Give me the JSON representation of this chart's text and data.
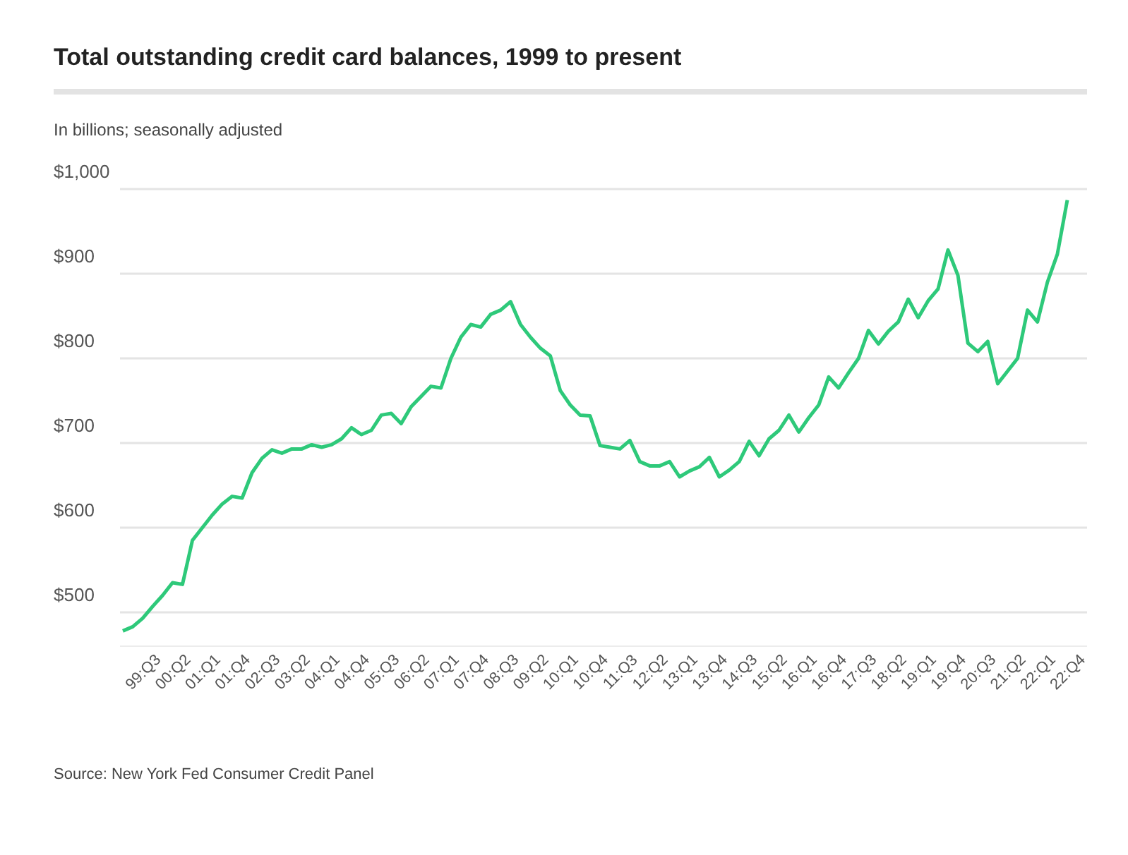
{
  "chart_data": {
    "type": "line",
    "title": "Total outstanding credit card balances, 1999 to present",
    "subtitle": "In billions; seasonally adjusted",
    "annotations": [
      "Source: New York Fed Consumer Credit Panel"
    ],
    "categories": [
      null,
      null,
      "99:Q3",
      null,
      null,
      "00:Q2",
      null,
      null,
      "01:Q1",
      null,
      null,
      "01:Q4",
      null,
      null,
      "02:Q3",
      null,
      null,
      "03:Q2",
      null,
      null,
      "04:Q1",
      null,
      null,
      "04:Q4",
      null,
      null,
      "05:Q3",
      null,
      null,
      "06:Q2",
      null,
      null,
      "07:Q1",
      null,
      null,
      "07:Q4",
      null,
      null,
      "08:Q3",
      null,
      null,
      "09:Q2",
      null,
      null,
      "10:Q1",
      null,
      null,
      "10:Q4",
      null,
      null,
      "11:Q3",
      null,
      null,
      "12:Q2",
      null,
      null,
      "13:Q1",
      null,
      null,
      "13:Q4",
      null,
      null,
      "14:Q3",
      null,
      null,
      "15:Q2",
      null,
      null,
      "16:Q1",
      null,
      null,
      "16:Q4",
      null,
      null,
      "17:Q3",
      null,
      null,
      "18:Q2",
      null,
      null,
      "19:Q1",
      null,
      null,
      "19:Q4",
      null,
      null,
      "20:Q3",
      null,
      null,
      "21:Q2",
      null,
      null,
      "22:Q1",
      null,
      null,
      "22:Q4"
    ],
    "series": [
      {
        "color": "#2ec97a",
        "values": [
          478,
          483,
          493,
          507,
          520,
          535,
          533,
          585,
          600,
          615,
          628,
          637,
          635,
          665,
          682,
          692,
          688,
          693,
          693,
          698,
          695,
          698,
          705,
          718,
          710,
          715,
          733,
          735,
          723,
          743,
          755,
          767,
          765,
          800,
          825,
          840,
          837,
          852,
          857,
          867,
          840,
          825,
          812,
          803,
          762,
          745,
          733,
          732,
          697,
          695,
          693,
          703,
          678,
          673,
          673,
          678,
          660,
          667,
          672,
          683,
          660,
          668,
          678,
          702,
          685,
          705,
          715,
          733,
          713,
          730,
          745,
          778,
          765,
          783,
          800,
          833,
          817,
          832,
          843,
          870,
          848,
          868,
          882,
          928,
          898,
          818,
          808,
          820,
          770,
          785,
          800,
          857,
          843,
          890,
          923,
          987
        ]
      }
    ],
    "ylim": [
      460,
      1000
    ],
    "yticks": [
      {
        "value": 500,
        "label": "$500"
      },
      {
        "value": 600,
        "label": "$600"
      },
      {
        "value": 700,
        "label": "$700"
      },
      {
        "value": 800,
        "label": "$800"
      },
      {
        "value": 900,
        "label": "$900"
      },
      {
        "value": 1000,
        "label": "$1,000"
      }
    ],
    "grid": "y",
    "marker": "none",
    "line_style": "solid"
  }
}
